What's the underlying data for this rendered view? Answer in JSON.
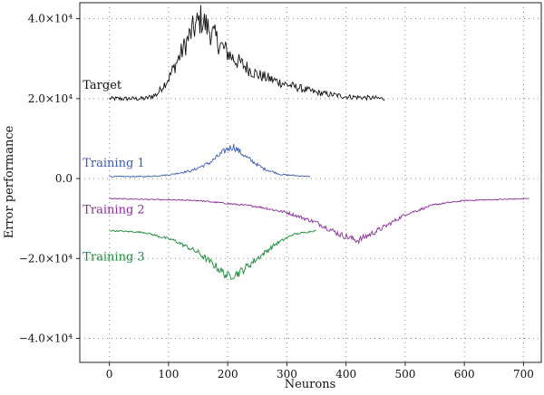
{
  "chart_data": {
    "type": "line",
    "xlabel": "Neurons",
    "ylabel": "Error performance",
    "xlim": [
      -50,
      730
    ],
    "ylim": [
      -46000,
      44000
    ],
    "x_ticks": [
      0,
      100,
      200,
      300,
      400,
      500,
      600,
      700
    ],
    "x_tick_labels": [
      "0",
      "100",
      "200",
      "300",
      "400",
      "500",
      "600",
      "700"
    ],
    "y_ticks": [
      40000,
      20000,
      0,
      -20000,
      -40000
    ],
    "y_tick_labels": [
      "4.0×10⁴",
      "2.0×10⁴",
      "0.0",
      "−2.0×10⁴",
      "−4.0×10⁴"
    ],
    "grid": "dotted",
    "series": [
      {
        "name": "Target",
        "color": "#111111",
        "label_at": [
          -45,
          22500
        ],
        "noise": 2200,
        "points": [
          [
            0,
            20000
          ],
          [
            60,
            20000
          ],
          [
            80,
            21000
          ],
          [
            100,
            25000
          ],
          [
            120,
            31000
          ],
          [
            140,
            37000
          ],
          [
            155,
            40000
          ],
          [
            170,
            37000
          ],
          [
            190,
            33000
          ],
          [
            210,
            30000
          ],
          [
            250,
            26000
          ],
          [
            300,
            23500
          ],
          [
            350,
            21500
          ],
          [
            400,
            20500
          ],
          [
            465,
            20000
          ]
        ]
      },
      {
        "name": "Training 1",
        "color": "#3a5bb8",
        "label_at": [
          -45,
          3000
        ],
        "noise": 500,
        "points": [
          [
            0,
            500
          ],
          [
            60,
            500
          ],
          [
            100,
            900
          ],
          [
            140,
            2000
          ],
          [
            170,
            4000
          ],
          [
            200,
            7500
          ],
          [
            210,
            8000
          ],
          [
            230,
            5500
          ],
          [
            260,
            2500
          ],
          [
            290,
            1000
          ],
          [
            340,
            500
          ]
        ]
      },
      {
        "name": "Training 2",
        "color": "#8a2a9a",
        "label_at": [
          -45,
          -8700
        ],
        "noise": 450,
        "points": [
          [
            0,
            -5000
          ],
          [
            150,
            -5500
          ],
          [
            250,
            -7000
          ],
          [
            300,
            -8500
          ],
          [
            350,
            -11000
          ],
          [
            390,
            -14000
          ],
          [
            420,
            -15500
          ],
          [
            460,
            -12500
          ],
          [
            500,
            -9000
          ],
          [
            550,
            -6500
          ],
          [
            600,
            -5500
          ],
          [
            710,
            -5000
          ]
        ]
      },
      {
        "name": "Training 3",
        "color": "#1a8a3a",
        "label_at": [
          -45,
          -20500
        ],
        "noise": 650,
        "points": [
          [
            0,
            -13000
          ],
          [
            60,
            -13500
          ],
          [
            110,
            -15500
          ],
          [
            150,
            -18500
          ],
          [
            180,
            -22000
          ],
          [
            200,
            -24500
          ],
          [
            220,
            -23500
          ],
          [
            250,
            -20000
          ],
          [
            280,
            -16500
          ],
          [
            310,
            -14000
          ],
          [
            350,
            -13000
          ]
        ]
      }
    ]
  }
}
